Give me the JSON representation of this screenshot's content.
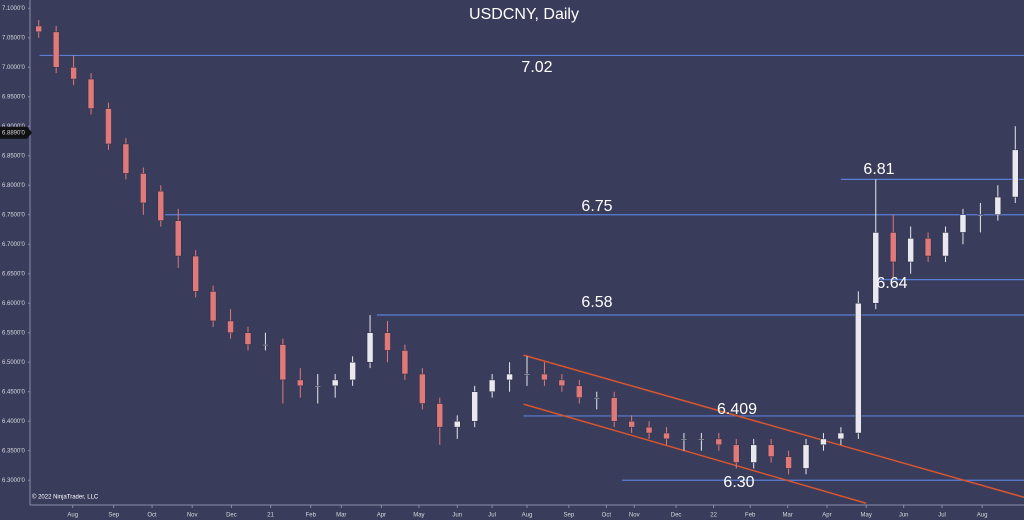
{
  "chart_data": {
    "type": "candlestick",
    "title": "USDCNY, Daily",
    "footer": "© 2022 NinjaTrader, LLC",
    "x": [
      1,
      3,
      5,
      7,
      9,
      11,
      13,
      15,
      17,
      19,
      21,
      23,
      25,
      27,
      29,
      31,
      33,
      35,
      37,
      39,
      41,
      43,
      45,
      47,
      49,
      51,
      53,
      55,
      57,
      59,
      61,
      63,
      65,
      67,
      69,
      71,
      73,
      75,
      77,
      79,
      81,
      83,
      85,
      87,
      89,
      91,
      93,
      95,
      97,
      99,
      101,
      103,
      105,
      107,
      109,
      111,
      113
    ],
    "open": [
      7.07,
      7.06,
      7.0,
      6.98,
      6.93,
      6.87,
      6.82,
      6.79,
      6.74,
      6.68,
      6.62,
      6.57,
      6.55,
      6.53,
      6.53,
      6.47,
      6.46,
      6.46,
      6.47,
      6.5,
      6.55,
      6.52,
      6.48,
      6.43,
      6.39,
      6.4,
      6.45,
      6.47,
      6.48,
      6.48,
      6.47,
      6.46,
      6.44,
      6.44,
      6.4,
      6.39,
      6.38,
      6.37,
      6.37,
      6.37,
      6.36,
      6.33,
      6.36,
      6.34,
      6.32,
      6.36,
      6.37,
      6.38,
      6.6,
      6.72,
      6.67,
      6.71,
      6.68,
      6.72,
      6.75,
      6.75,
      6.78
    ],
    "high": [
      7.08,
      7.07,
      7.02,
      6.99,
      6.94,
      6.88,
      6.83,
      6.8,
      6.76,
      6.69,
      6.63,
      6.59,
      6.56,
      6.55,
      6.54,
      6.49,
      6.48,
      6.48,
      6.51,
      6.58,
      6.57,
      6.53,
      6.49,
      6.44,
      6.41,
      6.46,
      6.48,
      6.5,
      6.51,
      6.5,
      6.48,
      6.47,
      6.45,
      6.45,
      6.41,
      6.4,
      6.39,
      6.38,
      6.38,
      6.38,
      6.37,
      6.37,
      6.37,
      6.35,
      6.37,
      6.38,
      6.39,
      6.62,
      6.81,
      6.75,
      6.73,
      6.72,
      6.73,
      6.76,
      6.77,
      6.8,
      6.9
    ],
    "low": [
      7.05,
      6.99,
      6.97,
      6.92,
      6.86,
      6.81,
      6.75,
      6.73,
      6.66,
      6.61,
      6.56,
      6.54,
      6.52,
      6.52,
      6.43,
      6.44,
      6.43,
      6.44,
      6.46,
      6.49,
      6.5,
      6.47,
      6.42,
      6.36,
      6.37,
      6.39,
      6.44,
      6.45,
      6.46,
      6.46,
      6.45,
      6.43,
      6.42,
      6.39,
      6.38,
      6.37,
      6.36,
      6.35,
      6.35,
      6.35,
      6.32,
      6.32,
      6.33,
      6.31,
      6.31,
      6.35,
      6.36,
      6.37,
      6.59,
      6.64,
      6.65,
      6.67,
      6.67,
      6.7,
      6.72,
      6.74,
      6.77
    ],
    "close": [
      7.06,
      7.0,
      6.98,
      6.93,
      6.87,
      6.82,
      6.77,
      6.74,
      6.68,
      6.62,
      6.57,
      6.55,
      6.53,
      6.53,
      6.47,
      6.46,
      6.46,
      6.47,
      6.5,
      6.55,
      6.52,
      6.48,
      6.43,
      6.39,
      6.4,
      6.45,
      6.47,
      6.48,
      6.48,
      6.47,
      6.46,
      6.44,
      6.44,
      6.4,
      6.39,
      6.38,
      6.37,
      6.37,
      6.37,
      6.36,
      6.33,
      6.36,
      6.34,
      6.32,
      6.36,
      6.37,
      6.38,
      6.6,
      6.72,
      6.67,
      6.71,
      6.68,
      6.72,
      6.75,
      6.75,
      6.78,
      6.86
    ],
    "up_color": "#e8e8ee",
    "down_color": "#e07a7a",
    "xlim": [
      0,
      114
    ],
    "ylim": [
      6.258,
      7.114
    ],
    "xticks": [
      {
        "value": 4.9,
        "label": "Aug"
      },
      {
        "value": 9.6,
        "label": "Sep"
      },
      {
        "value": 14,
        "label": "Oct"
      },
      {
        "value": 18.6,
        "label": "Nov"
      },
      {
        "value": 23.1,
        "label": "Dec"
      },
      {
        "value": 27.6,
        "label": "21"
      },
      {
        "value": 32.2,
        "label": "Feb"
      },
      {
        "value": 35.7,
        "label": "Mar"
      },
      {
        "value": 40.3,
        "label": "Apr"
      },
      {
        "value": 44.6,
        "label": "May"
      },
      {
        "value": 49,
        "label": "Jun"
      },
      {
        "value": 53,
        "label": "Jul"
      },
      {
        "value": 57,
        "label": "Aug"
      },
      {
        "value": 61.8,
        "label": "Sep"
      },
      {
        "value": 66.1,
        "label": "Oct"
      },
      {
        "value": 69.3,
        "label": "Nov"
      },
      {
        "value": 74.1,
        "label": "Dec"
      },
      {
        "value": 78.4,
        "label": "22"
      },
      {
        "value": 82.6,
        "label": "Feb"
      },
      {
        "value": 86.9,
        "label": "Mar"
      },
      {
        "value": 91.4,
        "label": "Apr"
      },
      {
        "value": 95.9,
        "label": "May"
      },
      {
        "value": 100.2,
        "label": "Jun"
      },
      {
        "value": 104.6,
        "label": "Jul"
      },
      {
        "value": 109.2,
        "label": "Aug"
      }
    ],
    "yticks": [
      {
        "value": 6.3,
        "label": "6.3000'0"
      },
      {
        "value": 6.35,
        "label": "6.3500'0"
      },
      {
        "value": 6.4,
        "label": "6.4000'0"
      },
      {
        "value": 6.45,
        "label": "6.4500'0"
      },
      {
        "value": 6.5,
        "label": "6.5000'0"
      },
      {
        "value": 6.55,
        "label": "6.5500'0"
      },
      {
        "value": 6.6,
        "label": "6.6000'0"
      },
      {
        "value": 6.65,
        "label": "6.6500'0"
      },
      {
        "value": 6.7,
        "label": "6.7000'0"
      },
      {
        "value": 6.75,
        "label": "6.7500'0"
      },
      {
        "value": 6.8,
        "label": "6.8000'0"
      },
      {
        "value": 6.85,
        "label": "6.8500'0"
      },
      {
        "value": 6.9,
        "label": "6.9000'0"
      },
      {
        "value": 6.95,
        "label": "6.9500'0"
      },
      {
        "value": 7.0,
        "label": "7.0000'0"
      },
      {
        "value": 7.05,
        "label": "7.0500'0"
      },
      {
        "value": 7.1,
        "label": "7.1000'0"
      }
    ],
    "last_price": {
      "value": 6.889,
      "label": "6.8890'0"
    },
    "levels": [
      {
        "value": 7.02,
        "label": "7.02",
        "start": 1.1
      },
      {
        "value": 6.75,
        "label": "6.75",
        "start": 15.5
      },
      {
        "value": 6.58,
        "label": "6.58",
        "start": 39.8
      },
      {
        "value": 6.409,
        "label": "6.409",
        "start": 56.6
      },
      {
        "value": 6.3,
        "label": "6.30",
        "start": 67.9
      },
      {
        "value": 6.81,
        "label": "6.81",
        "start": 93.0
      },
      {
        "value": 6.64,
        "label": "6.64",
        "start": 96.6
      }
    ],
    "level_color": "#5b7fd8",
    "trendlines": [
      {
        "x": [
          56.6,
          114
        ],
        "y": [
          6.512,
          6.271
        ]
      },
      {
        "x": [
          56.6,
          95.9
        ],
        "y": [
          6.429,
          6.261
        ]
      }
    ],
    "trend_color": "#d9552e"
  }
}
